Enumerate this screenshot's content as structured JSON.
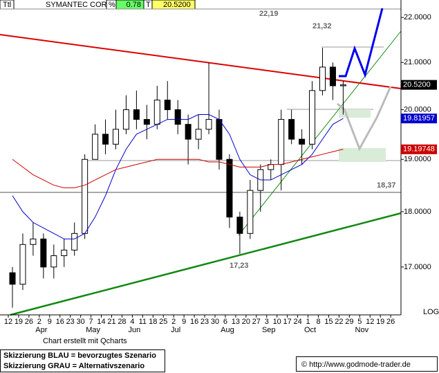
{
  "header": {
    "symbol": "Ttl",
    "name": "SYMANTEC CORP",
    "pct_label": "%",
    "pct": "0.78",
    "t_label": "T",
    "last": "20.5200"
  },
  "chart_data": {
    "type": "candlestick",
    "categories": [
      "12",
      "19",
      "26",
      "2",
      "9",
      "16",
      "23",
      "30",
      "7",
      "14",
      "21",
      "28",
      "4",
      "11",
      "18",
      "25",
      "2",
      "9",
      "16",
      "23",
      "30",
      "6",
      "13",
      "20",
      "27",
      "3",
      "10",
      "17",
      "24",
      "1",
      "8",
      "15",
      "22",
      "29",
      "5",
      "12",
      "19",
      "26"
    ],
    "months": [
      null,
      null,
      null,
      "Apr",
      null,
      null,
      null,
      null,
      "May",
      null,
      null,
      null,
      "Jun",
      null,
      null,
      null,
      "Jul",
      null,
      null,
      null,
      null,
      "Aug",
      null,
      null,
      null,
      "Sep",
      null,
      null,
      null,
      "Oct",
      null,
      null,
      null,
      null,
      "Nov",
      null,
      null,
      null
    ],
    "open": [
      16.9,
      16.7,
      17.4,
      17.5,
      17.0,
      17.2,
      17.3,
      17.6,
      19.0,
      19.5,
      19.3,
      19.6,
      20.0,
      19.8,
      19.7,
      20.2,
      20.0,
      19.7,
      19.4,
      19.6,
      19.8,
      19.0,
      17.9,
      17.6,
      18.4,
      18.8,
      18.9,
      19.8,
      19.4,
      19.3,
      20.4,
      20.9,
      20.5,
      null,
      null,
      null,
      null,
      null
    ],
    "high": [
      17.0,
      17.6,
      17.8,
      17.6,
      17.4,
      17.5,
      17.8,
      19.1,
      19.7,
      19.8,
      20.0,
      20.3,
      20.4,
      20.1,
      20.5,
      20.6,
      20.2,
      19.9,
      19.9,
      21.0,
      20.0,
      19.1,
      18.0,
      18.6,
      18.9,
      19.0,
      20.0,
      20.0,
      19.6,
      20.6,
      21.32,
      21.0,
      20.6,
      null,
      null,
      null,
      null,
      null
    ],
    "low": [
      16.3,
      16.6,
      17.2,
      16.8,
      16.8,
      17.0,
      17.2,
      17.5,
      19.0,
      19.1,
      19.2,
      19.5,
      19.6,
      19.4,
      19.6,
      19.8,
      19.5,
      18.9,
      19.2,
      19.5,
      18.8,
      17.7,
      17.23,
      17.5,
      18.0,
      18.6,
      18.4,
      19.3,
      18.9,
      19.2,
      20.3,
      20.2,
      19.9,
      null,
      null,
      null,
      null,
      null
    ],
    "close": [
      16.7,
      17.4,
      17.5,
      17.0,
      17.2,
      17.3,
      17.6,
      19.0,
      19.5,
      19.3,
      19.6,
      20.0,
      19.8,
      19.7,
      20.2,
      20.0,
      19.7,
      19.4,
      19.6,
      19.8,
      19.0,
      17.9,
      17.6,
      18.4,
      18.8,
      18.9,
      19.8,
      19.4,
      19.3,
      20.4,
      20.9,
      20.5,
      20.52,
      null,
      null,
      null,
      null,
      null
    ],
    "series": [
      {
        "color": "#0000cc",
        "values": [
          18.3,
          18.0,
          17.8,
          17.7,
          17.6,
          17.5,
          17.5,
          17.6,
          17.9,
          18.3,
          18.8,
          19.2,
          19.5,
          19.6,
          19.7,
          19.8,
          19.8,
          19.8,
          19.9,
          19.9,
          19.8,
          19.5,
          19.0,
          18.7,
          18.6,
          18.6,
          18.7,
          18.8,
          18.9,
          19.1,
          19.4,
          19.7,
          19.82,
          null,
          null,
          null,
          null,
          null
        ]
      },
      {
        "color": "#cc0000",
        "values": [
          19.0,
          18.85,
          18.7,
          18.6,
          18.5,
          18.45,
          18.45,
          18.5,
          18.6,
          18.7,
          18.8,
          18.85,
          18.9,
          18.95,
          19.0,
          19.0,
          19.0,
          19.0,
          19.0,
          18.95,
          18.95,
          18.9,
          18.85,
          18.85,
          18.85,
          18.9,
          18.9,
          18.95,
          19.0,
          19.05,
          19.1,
          19.15,
          19.2,
          null,
          null,
          null,
          null,
          null
        ]
      }
    ],
    "ylim": [
      16.18,
      22.4
    ],
    "log_scale": true,
    "yticks": [
      {
        "value": 17,
        "label": "17.0000"
      },
      {
        "value": 18,
        "label": "18.0000"
      },
      {
        "value": 19,
        "label": "19.0000"
      },
      {
        "value": 20,
        "label": "20.0000"
      },
      {
        "value": 21,
        "label": "21.0000"
      },
      {
        "value": 22,
        "label": "22.0000"
      }
    ],
    "scale_label": "LOG",
    "annotations": [
      "22,19",
      "21,32",
      "18,37",
      "17,23"
    ],
    "last_labels": [
      {
        "value": 20.52,
        "label": "20.5200",
        "color": "#000000"
      },
      {
        "value": 19.81957,
        "label": "19.81957",
        "color": "#0000cc"
      },
      {
        "value": 19.19748,
        "label": "19.19748",
        "color": "#cc0000"
      }
    ]
  },
  "footer": {
    "credit": "Chart erstellt mit Qcharts",
    "legend_blue": "Skizzierung BLAU = bevorzugtes Szenario",
    "legend_gray": "Skizzierung GRAU = Alternativszenario",
    "copyright": "© http://www.godmode-trader.de"
  }
}
